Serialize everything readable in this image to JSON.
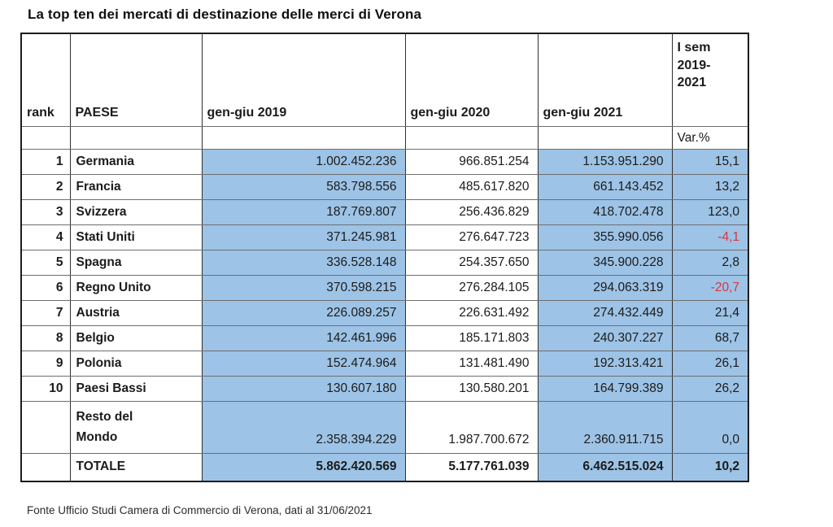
{
  "page": {
    "title": "La top ten dei mercati di destinazione delle merci di Verona",
    "footer": "Fonte Ufficio Studi Camera di Commercio di Verona, dati al 31/06/2021"
  },
  "colors": {
    "highlight_blue": "#9DC3E6",
    "negative_red": "#D93440",
    "text": "#1B1B1B"
  },
  "table": {
    "header": {
      "rank": "rank",
      "paese": "PAESE",
      "c2019": "gen-giu 2019",
      "c2020": "gen-giu 2020",
      "c2021": "gen-giu 2021",
      "isem": "I sem 2019-2021",
      "var_label": "Var.%"
    },
    "rows": [
      {
        "rank": "1",
        "paese": "Germania",
        "v2019": "1.002.452.236",
        "v2020": "966.851.254",
        "v2021": "1.153.951.290",
        "var": "15,1"
      },
      {
        "rank": "2",
        "paese": "Francia",
        "v2019": "583.798.556",
        "v2020": "485.617.820",
        "v2021": "661.143.452",
        "var": "13,2"
      },
      {
        "rank": "3",
        "paese": "Svizzera",
        "v2019": "187.769.807",
        "v2020": "256.436.829",
        "v2021": "418.702.478",
        "var": "123,0"
      },
      {
        "rank": "4",
        "paese": "Stati Uniti",
        "v2019": "371.245.981",
        "v2020": "276.647.723",
        "v2021": "355.990.056",
        "var": "-4,1"
      },
      {
        "rank": "5",
        "paese": "Spagna",
        "v2019": "336.528.148",
        "v2020": "254.357.650",
        "v2021": "345.900.228",
        "var": "2,8"
      },
      {
        "rank": "6",
        "paese": "Regno Unito",
        "v2019": "370.598.215",
        "v2020": "276.284.105",
        "v2021": "294.063.319",
        "var": "-20,7"
      },
      {
        "rank": "7",
        "paese": "Austria",
        "v2019": "226.089.257",
        "v2020": "226.631.492",
        "v2021": "274.432.449",
        "var": "21,4"
      },
      {
        "rank": "8",
        "paese": "Belgio",
        "v2019": "142.461.996",
        "v2020": "185.171.803",
        "v2021": "240.307.227",
        "var": "68,7"
      },
      {
        "rank": "9",
        "paese": "Polonia",
        "v2019": "152.474.964",
        "v2020": "131.481.490",
        "v2021": "192.313.421",
        "var": "26,1"
      },
      {
        "rank": "10",
        "paese": "Paesi Bassi",
        "v2019": "130.607.180",
        "v2020": "130.580.201",
        "v2021": "164.799.389",
        "var": "26,2"
      },
      {
        "rank": "",
        "paese": "Resto  del\nMondo",
        "v2019": "2.358.394.229",
        "v2020": "1.987.700.672",
        "v2021": "2.360.911.715",
        "var": "0,0",
        "tall": true
      },
      {
        "rank": "",
        "paese": "TOTALE",
        "v2019": "5.862.420.569",
        "v2020": "5.177.761.039",
        "v2021": "6.462.515.024",
        "var": "10,2",
        "total": true
      }
    ]
  },
  "chart_data": {
    "type": "table",
    "title": "La top ten dei mercati di destinazione delle merci di Verona",
    "columns": [
      "rank",
      "PAESE",
      "gen-giu 2019",
      "gen-giu 2020",
      "gen-giu 2021",
      "I sem 2019-2021 Var.%"
    ],
    "rows": [
      [
        1,
        "Germania",
        1002452236,
        966851254,
        1153951290,
        15.1
      ],
      [
        2,
        "Francia",
        583798556,
        485617820,
        661143452,
        13.2
      ],
      [
        3,
        "Svizzera",
        187769807,
        256436829,
        418702478,
        123.0
      ],
      [
        4,
        "Stati Uniti",
        371245981,
        276647723,
        355990056,
        -4.1
      ],
      [
        5,
        "Spagna",
        336528148,
        254357650,
        345900228,
        2.8
      ],
      [
        6,
        "Regno Unito",
        370598215,
        276284105,
        294063319,
        -20.7
      ],
      [
        7,
        "Austria",
        226089257,
        226631492,
        274432449,
        21.4
      ],
      [
        8,
        "Belgio",
        142461996,
        185171803,
        240307227,
        68.7
      ],
      [
        9,
        "Polonia",
        152474964,
        131481490,
        192313421,
        26.1
      ],
      [
        10,
        "Paesi Bassi",
        130607180,
        130580201,
        164799389,
        26.2
      ],
      [
        null,
        "Resto del Mondo",
        2358394229,
        1987700672,
        2360911715,
        0.0
      ],
      [
        null,
        "TOTALE",
        5862420569,
        5177761039,
        6462515024,
        10.2
      ]
    ],
    "source": "Fonte Ufficio Studi Camera di Commercio di Verona, dati al 31/06/2021",
    "layout_hints": {
      "highlighted_columns": [
        "gen-giu 2019",
        "gen-giu 2021",
        "Var.%"
      ],
      "negative_values_in_red": true
    }
  }
}
